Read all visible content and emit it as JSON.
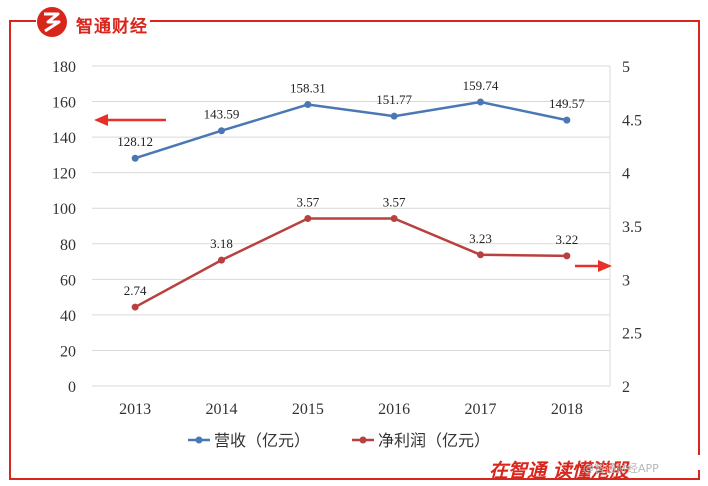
{
  "header": {
    "brand": "智通财经",
    "brand_color": "#d9261c"
  },
  "footer": {
    "slogan": "在智通 读懂港股",
    "watermark": "@智通财经APP"
  },
  "chart_data": {
    "type": "line",
    "title": "",
    "categories": [
      "2013",
      "2014",
      "2015",
      "2016",
      "2017",
      "2018"
    ],
    "y_left": {
      "range": [
        0,
        180
      ],
      "ticks": [
        0,
        20,
        40,
        60,
        80,
        100,
        120,
        140,
        160,
        180
      ]
    },
    "y_right": {
      "range": [
        2,
        5
      ],
      "ticks": [
        "2",
        "2.5",
        "3",
        "3.5",
        "4",
        "4.5",
        "5"
      ]
    },
    "series": [
      {
        "name": "营收（亿元）",
        "axis": "left",
        "color": "#4a78b4",
        "values": [
          128.12,
          143.59,
          158.31,
          151.77,
          159.74,
          149.57
        ],
        "labels": [
          "128.12",
          "143.59",
          "158.31",
          "151.77",
          "159.74",
          "149.57"
        ]
      },
      {
        "name": "净利润（亿元）",
        "axis": "right",
        "color": "#b8413f",
        "values": [
          2.74,
          3.18,
          3.57,
          3.57,
          3.23,
          3.22
        ],
        "labels": [
          "2.74",
          "3.18",
          "3.57",
          "3.57",
          "3.23",
          "3.22"
        ]
      }
    ],
    "grid": true,
    "legend": "bottom",
    "annotations": [
      "arrow pointing to left axis",
      "arrow pointing to right axis"
    ],
    "accent_color": "#e8302a"
  }
}
